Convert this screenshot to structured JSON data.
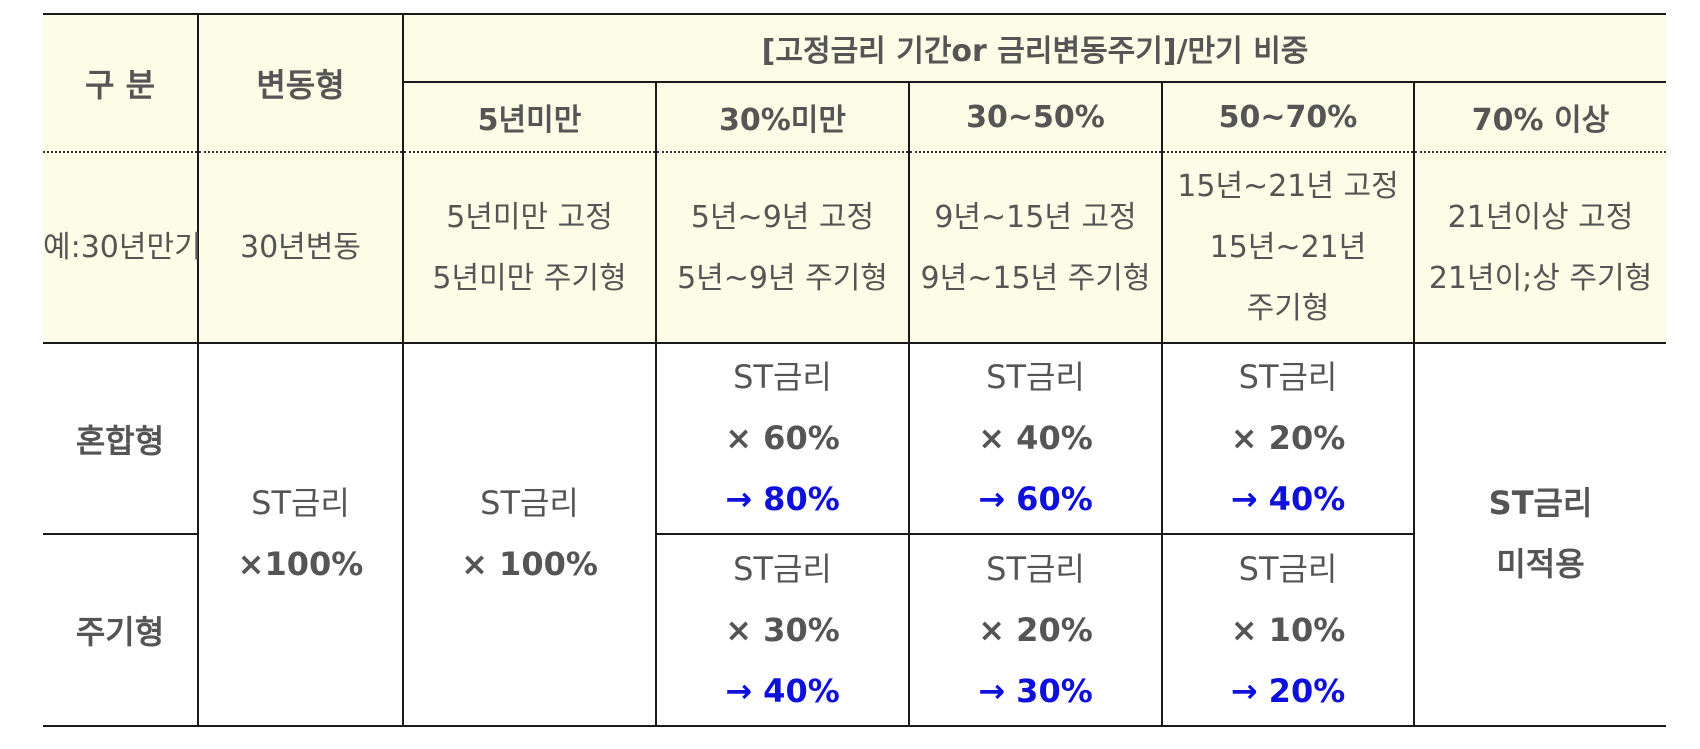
{
  "header": {
    "category": "구 분",
    "variable": "변동형",
    "group_title": "[고정금리 기간or 금리변동주기]/만기 비중",
    "columns": [
      "5년미만",
      "30%미만",
      "30~50%",
      "50~70%",
      "70% 이상"
    ]
  },
  "example_row": {
    "label": "예:30년만기",
    "variable": "30년변동",
    "cells": [
      [
        "5년미만 고정",
        "5년미만 주기형"
      ],
      [
        "5년~9년 고정",
        "5년~9년 주기형"
      ],
      [
        "9년~15년 고정",
        "9년~15년 주기형"
      ],
      [
        "15년~21년 고정",
        "15년~21년",
        "주기형"
      ],
      [
        "21년이상 고정",
        "21년이;상 주기형"
      ]
    ]
  },
  "rows": {
    "mixed_label": "혼합형",
    "periodic_label": "주기형",
    "variable_value": [
      "ST금리",
      "×100%"
    ],
    "under5_value": [
      "ST금리",
      "× 100%"
    ],
    "over70_value": [
      "ST금리",
      "미적용"
    ],
    "mixed": [
      {
        "base": "ST금리",
        "factor": "× 60%",
        "result": "→ 80%"
      },
      {
        "base": "ST금리",
        "factor": "× 40%",
        "result": "→ 60%"
      },
      {
        "base": "ST금리",
        "factor": "× 20%",
        "result": "→ 40%"
      }
    ],
    "periodic": [
      {
        "base": "ST금리",
        "factor": "× 30%",
        "result": "→ 40%"
      },
      {
        "base": "ST금리",
        "factor": "× 20%",
        "result": "→ 30%"
      },
      {
        "base": "ST금리",
        "factor": "× 10%",
        "result": "→ 20%"
      }
    ]
  },
  "colors": {
    "header_bg": "#fdfce6",
    "text": "#555555",
    "accent_blue": "#1010dd",
    "border": "#1a1a1a"
  }
}
